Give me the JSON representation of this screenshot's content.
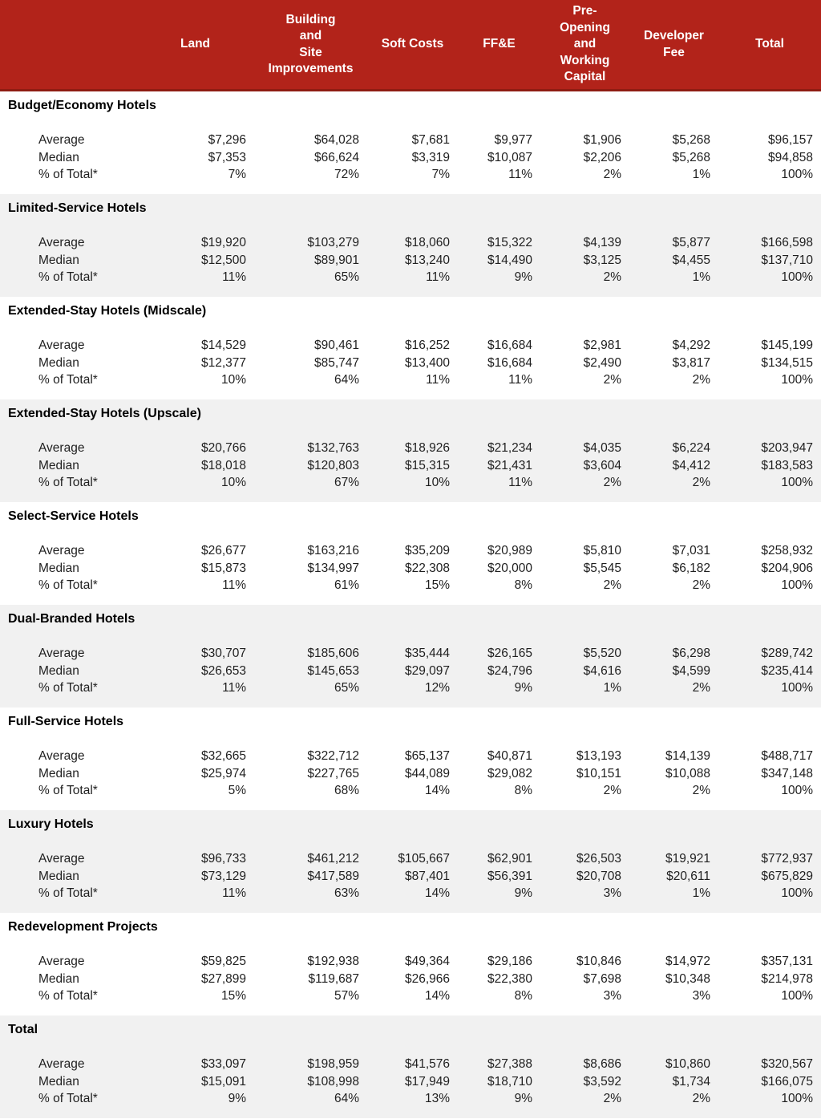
{
  "colors": {
    "header_bg": "#B2231A",
    "header_border": "#8E1C12",
    "band_gray": "#F1F1F1",
    "header_text": "#FFFFFF",
    "body_text": "#1F1F1F"
  },
  "header": {
    "columns": [
      "",
      "Land",
      "Building\nand\nSite\nImprovements",
      "Soft Costs",
      "FF&E",
      "Pre-\nOpening\nand\nWorking\nCapital",
      "Developer\nFee",
      "Total"
    ]
  },
  "sections": [
    {
      "title": "Budget/Economy Hotels",
      "rows": [
        {
          "label": "Average",
          "values": [
            "$7,296",
            "$64,028",
            "$7,681",
            "$9,977",
            "$1,906",
            "$5,268",
            "$96,157"
          ]
        },
        {
          "label": "Median",
          "values": [
            "$7,353",
            "$66,624",
            "$3,319",
            "$10,087",
            "$2,206",
            "$5,268",
            "$94,858"
          ]
        },
        {
          "label": "% of Total*",
          "values": [
            "7%",
            "72%",
            "7%",
            "11%",
            "2%",
            "1%",
            "100%"
          ]
        }
      ]
    },
    {
      "title": "Limited-Service Hotels",
      "rows": [
        {
          "label": "Average",
          "values": [
            "$19,920",
            "$103,279",
            "$18,060",
            "$15,322",
            "$4,139",
            "$5,877",
            "$166,598"
          ]
        },
        {
          "label": "Median",
          "values": [
            "$12,500",
            "$89,901",
            "$13,240",
            "$14,490",
            "$3,125",
            "$4,455",
            "$137,710"
          ]
        },
        {
          "label": "% of Total*",
          "values": [
            "11%",
            "65%",
            "11%",
            "9%",
            "2%",
            "1%",
            "100%"
          ]
        }
      ]
    },
    {
      "title": "Extended-Stay Hotels (Midscale)",
      "rows": [
        {
          "label": "Average",
          "values": [
            "$14,529",
            "$90,461",
            "$16,252",
            "$16,684",
            "$2,981",
            "$4,292",
            "$145,199"
          ]
        },
        {
          "label": "Median",
          "values": [
            "$12,377",
            "$85,747",
            "$13,400",
            "$16,684",
            "$2,490",
            "$3,817",
            "$134,515"
          ]
        },
        {
          "label": "% of Total*",
          "values": [
            "10%",
            "64%",
            "11%",
            "11%",
            "2%",
            "2%",
            "100%"
          ]
        }
      ]
    },
    {
      "title": "Extended-Stay Hotels (Upscale)",
      "rows": [
        {
          "label": "Average",
          "values": [
            "$20,766",
            "$132,763",
            "$18,926",
            "$21,234",
            "$4,035",
            "$6,224",
            "$203,947"
          ]
        },
        {
          "label": "Median",
          "values": [
            "$18,018",
            "$120,803",
            "$15,315",
            "$21,431",
            "$3,604",
            "$4,412",
            "$183,583"
          ]
        },
        {
          "label": "% of Total*",
          "values": [
            "10%",
            "67%",
            "10%",
            "11%",
            "2%",
            "2%",
            "100%"
          ]
        }
      ]
    },
    {
      "title": "Select-Service Hotels",
      "rows": [
        {
          "label": "Average",
          "values": [
            "$26,677",
            "$163,216",
            "$35,209",
            "$20,989",
            "$5,810",
            "$7,031",
            "$258,932"
          ]
        },
        {
          "label": "Median",
          "values": [
            "$15,873",
            "$134,997",
            "$22,308",
            "$20,000",
            "$5,545",
            "$6,182",
            "$204,906"
          ]
        },
        {
          "label": "% of Total*",
          "values": [
            "11%",
            "61%",
            "15%",
            "8%",
            "2%",
            "2%",
            "100%"
          ]
        }
      ]
    },
    {
      "title": "Dual-Branded Hotels",
      "rows": [
        {
          "label": "Average",
          "values": [
            "$30,707",
            "$185,606",
            "$35,444",
            "$26,165",
            "$5,520",
            "$6,298",
            "$289,742"
          ]
        },
        {
          "label": "Median",
          "values": [
            "$26,653",
            "$145,653",
            "$29,097",
            "$24,796",
            "$4,616",
            "$4,599",
            "$235,414"
          ]
        },
        {
          "label": "% of Total*",
          "values": [
            "11%",
            "65%",
            "12%",
            "9%",
            "1%",
            "2%",
            "100%"
          ]
        }
      ]
    },
    {
      "title": "Full-Service Hotels",
      "rows": [
        {
          "label": "Average",
          "values": [
            "$32,665",
            "$322,712",
            "$65,137",
            "$40,871",
            "$13,193",
            "$14,139",
            "$488,717"
          ]
        },
        {
          "label": "Median",
          "values": [
            "$25,974",
            "$227,765",
            "$44,089",
            "$29,082",
            "$10,151",
            "$10,088",
            "$347,148"
          ]
        },
        {
          "label": "% of Total*",
          "values": [
            "5%",
            "68%",
            "14%",
            "8%",
            "2%",
            "2%",
            "100%"
          ]
        }
      ]
    },
    {
      "title": "Luxury Hotels",
      "rows": [
        {
          "label": "Average",
          "values": [
            "$96,733",
            "$461,212",
            "$105,667",
            "$62,901",
            "$26,503",
            "$19,921",
            "$772,937"
          ]
        },
        {
          "label": "Median",
          "values": [
            "$73,129",
            "$417,589",
            "$87,401",
            "$56,391",
            "$20,708",
            "$20,611",
            "$675,829"
          ]
        },
        {
          "label": "% of Total*",
          "values": [
            "11%",
            "63%",
            "14%",
            "9%",
            "3%",
            "1%",
            "100%"
          ]
        }
      ]
    },
    {
      "title": "Redevelopment Projects",
      "rows": [
        {
          "label": "Average",
          "values": [
            "$59,825",
            "$192,938",
            "$49,364",
            "$29,186",
            "$10,846",
            "$14,972",
            "$357,131"
          ]
        },
        {
          "label": "Median",
          "values": [
            "$27,899",
            "$119,687",
            "$26,966",
            "$22,380",
            "$7,698",
            "$10,348",
            "$214,978"
          ]
        },
        {
          "label": "% of Total*",
          "values": [
            "15%",
            "57%",
            "14%",
            "8%",
            "3%",
            "3%",
            "100%"
          ]
        }
      ]
    },
    {
      "title": "Total",
      "rows": [
        {
          "label": "Average",
          "values": [
            "$33,097",
            "$198,959",
            "$41,576",
            "$27,388",
            "$8,686",
            "$10,860",
            "$320,567"
          ]
        },
        {
          "label": "Median",
          "values": [
            "$15,091",
            "$108,998",
            "$17,949",
            "$18,710",
            "$3,592",
            "$1,734",
            "$166,075"
          ]
        },
        {
          "label": "% of Total*",
          "values": [
            "9%",
            "64%",
            "13%",
            "9%",
            "2%",
            "2%",
            "100%"
          ]
        }
      ]
    }
  ]
}
